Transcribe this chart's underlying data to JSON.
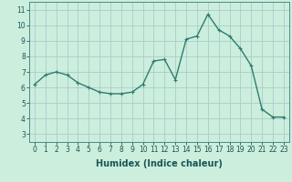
{
  "x": [
    0,
    1,
    2,
    3,
    4,
    5,
    6,
    7,
    8,
    9,
    10,
    11,
    12,
    13,
    14,
    15,
    16,
    17,
    18,
    19,
    20,
    21,
    22,
    23
  ],
  "y": [
    6.2,
    6.8,
    7.0,
    6.8,
    6.3,
    6.0,
    5.7,
    5.6,
    5.6,
    5.7,
    6.2,
    7.7,
    7.8,
    6.5,
    9.1,
    9.3,
    10.7,
    9.7,
    9.3,
    8.5,
    7.4,
    4.6,
    4.1,
    4.1
  ],
  "line_color": "#2e7d6e",
  "marker": "+",
  "markersize": 3,
  "linewidth": 1.0,
  "bg_color": "#cceedd",
  "grid_color": "#aacccc",
  "xlabel": "Humidex (Indice chaleur)",
  "xlabel_fontsize": 7,
  "tick_fontsize": 5.5,
  "xlim": [
    -0.5,
    23.5
  ],
  "ylim": [
    2.5,
    11.5
  ],
  "yticks": [
    3,
    4,
    5,
    6,
    7,
    8,
    9,
    10,
    11
  ],
  "xticks": [
    0,
    1,
    2,
    3,
    4,
    5,
    6,
    7,
    8,
    9,
    10,
    11,
    12,
    13,
    14,
    15,
    16,
    17,
    18,
    19,
    20,
    21,
    22,
    23
  ]
}
